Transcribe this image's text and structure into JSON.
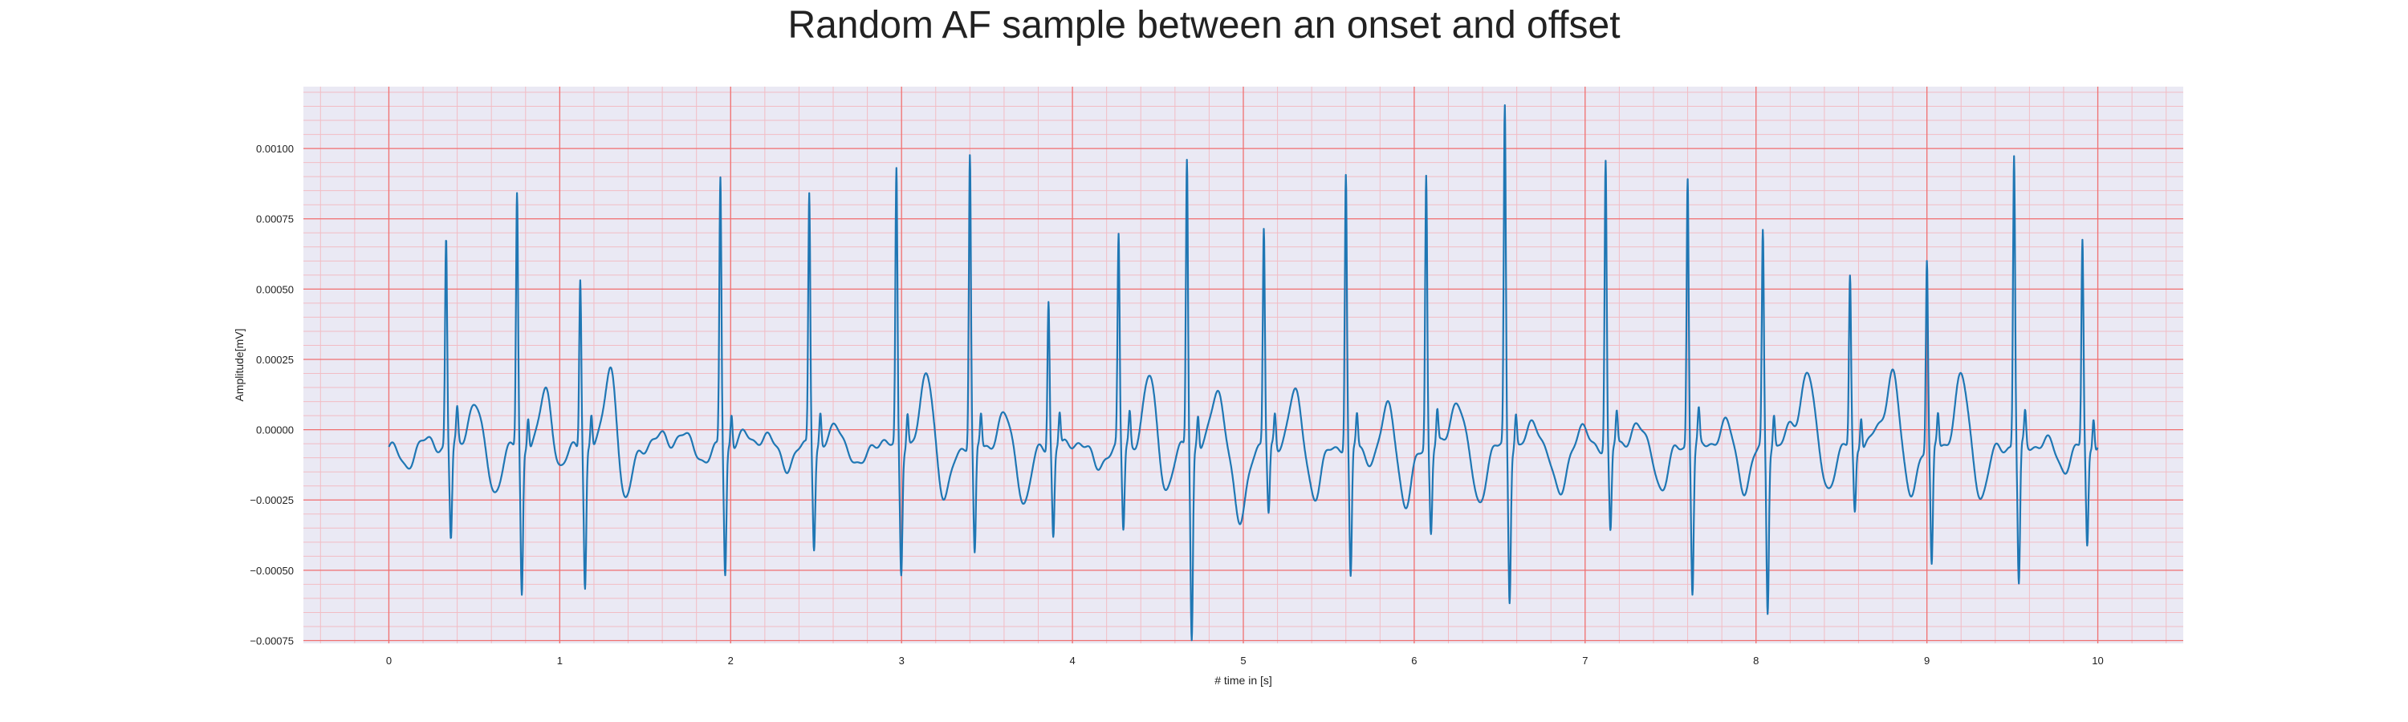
{
  "chart_data": {
    "type": "line",
    "title": "Random AF sample between an onset and offset",
    "xlabel": "# time in [s]",
    "ylabel": "Amplitude[mV]",
    "xlim": [
      -0.5,
      10.5
    ],
    "ylim": [
      -0.00076,
      0.00122
    ],
    "xticks": [
      0,
      1,
      2,
      3,
      4,
      5,
      6,
      7,
      8,
      9,
      10
    ],
    "xtick_labels": [
      "0",
      "1",
      "2",
      "3",
      "4",
      "5",
      "6",
      "7",
      "8",
      "9",
      "10"
    ],
    "yticks": [
      -0.00075,
      -0.0005,
      -0.00025,
      0.0,
      0.00025,
      0.0005,
      0.00075,
      0.001
    ],
    "ytick_labels": [
      "−0.00075",
      "−0.00050",
      "−0.00025",
      "0.00000",
      "0.00025",
      "0.00050",
      "0.00075",
      "0.00100"
    ],
    "grid": true,
    "minor_grid": true,
    "colors": {
      "line": "#1f77b4",
      "background": "#eae9f4",
      "major_grid": "#f07070",
      "minor_grid": "#f2bcc4"
    },
    "series": [
      {
        "beats": [
          {
            "t": 0.335,
            "r": 0.00068,
            "s": -0.00033
          },
          {
            "t": 0.75,
            "r": 0.00084,
            "s": -0.00053
          },
          {
            "t": 1.12,
            "r": 0.00055,
            "s": -0.0005
          },
          {
            "t": 1.94,
            "r": 0.0009,
            "s": -0.00045
          },
          {
            "t": 2.46,
            "r": 0.00084,
            "s": -0.00035
          },
          {
            "t": 2.97,
            "r": 0.00092,
            "s": -0.00044
          },
          {
            "t": 3.4,
            "r": 0.00098,
            "s": -0.0004
          },
          {
            "t": 3.86,
            "r": 0.00047,
            "s": -0.00032
          },
          {
            "t": 4.27,
            "r": 0.00068,
            "s": -0.0003
          },
          {
            "t": 4.67,
            "r": 0.00097,
            "s": -0.00068
          },
          {
            "t": 5.12,
            "r": 0.00071,
            "s": -0.00025
          },
          {
            "t": 5.6,
            "r": 0.00091,
            "s": -0.00048
          },
          {
            "t": 6.07,
            "r": 0.00091,
            "s": -0.0003
          },
          {
            "t": 6.53,
            "r": 0.00114,
            "s": -0.00054
          },
          {
            "t": 7.12,
            "r": 0.00096,
            "s": -0.00031
          },
          {
            "t": 7.6,
            "r": 0.0009,
            "s": -0.00051
          },
          {
            "t": 8.04,
            "r": 0.00069,
            "s": -0.00059
          },
          {
            "t": 8.55,
            "r": 0.00054,
            "s": -0.00024
          },
          {
            "t": 9.0,
            "r": 0.00061,
            "s": -0.00044
          },
          {
            "t": 9.51,
            "r": 0.00098,
            "s": -0.0005
          },
          {
            "t": 9.91,
            "r": 0.00067,
            "s": -0.00036
          }
        ],
        "baseline_waves": [
          {
            "t": 0.1,
            "a": -7e-05
          },
          {
            "t": 0.22,
            "a": 2e-05
          },
          {
            "t": 0.5,
            "a": 0.00016
          },
          {
            "t": 0.62,
            "a": -0.00016
          },
          {
            "t": 0.92,
            "a": 0.0002
          },
          {
            "t": 1.0,
            "a": -8e-05
          },
          {
            "t": 1.3,
            "a": 0.0003
          },
          {
            "t": 1.38,
            "a": -0.00022
          },
          {
            "t": 1.6,
            "a": 4e-05
          },
          {
            "t": 1.72,
            "a": 4e-05
          },
          {
            "t": 1.85,
            "a": -5e-05
          },
          {
            "t": 2.08,
            "a": 4e-05
          },
          {
            "t": 2.2,
            "a": 4e-05
          },
          {
            "t": 2.33,
            "a": -7e-05
          },
          {
            "t": 2.62,
            "a": 7e-05
          },
          {
            "t": 2.75,
            "a": -8e-05
          },
          {
            "t": 2.85,
            "a": 2e-05
          },
          {
            "t": 3.15,
            "a": 0.00027
          },
          {
            "t": 3.25,
            "a": -0.0002
          },
          {
            "t": 3.6,
            "a": 0.00011
          },
          {
            "t": 3.72,
            "a": -0.0002
          },
          {
            "t": 4.05,
            "a": 2e-05
          },
          {
            "t": 4.15,
            "a": -8e-05
          },
          {
            "t": 4.45,
            "a": 0.00025
          },
          {
            "t": 4.55,
            "a": -0.00015
          },
          {
            "t": 4.85,
            "a": 0.0002
          },
          {
            "t": 4.98,
            "a": -0.00028
          },
          {
            "t": 5.3,
            "a": 0.00019
          },
          {
            "t": 5.42,
            "a": -0.00018
          },
          {
            "t": 5.75,
            "a": -5e-05
          },
          {
            "t": 5.85,
            "a": 0.00015
          },
          {
            "t": 5.95,
            "a": -0.00022
          },
          {
            "t": 6.25,
            "a": 0.00017
          },
          {
            "t": 6.38,
            "a": -0.0002
          },
          {
            "t": 6.7,
            "a": 8e-05
          },
          {
            "t": 6.85,
            "a": -0.00018
          },
          {
            "t": 6.98,
            "a": 6e-05
          },
          {
            "t": 7.3,
            "a": 8e-05
          },
          {
            "t": 7.45,
            "a": -0.00015
          },
          {
            "t": 7.82,
            "a": 9e-05
          },
          {
            "t": 7.93,
            "a": -0.00015
          },
          {
            "t": 8.2,
            "a": 6e-05
          },
          {
            "t": 8.3,
            "a": 0.00028
          },
          {
            "t": 8.42,
            "a": -0.00015
          },
          {
            "t": 8.7,
            "a": 5e-05
          },
          {
            "t": 8.8,
            "a": 0.00028
          },
          {
            "t": 8.9,
            "a": -0.00018
          },
          {
            "t": 9.2,
            "a": 0.00025
          },
          {
            "t": 9.32,
            "a": -0.00018
          },
          {
            "t": 9.7,
            "a": 2e-05
          },
          {
            "t": 9.8,
            "a": -8e-05
          }
        ]
      }
    ]
  }
}
